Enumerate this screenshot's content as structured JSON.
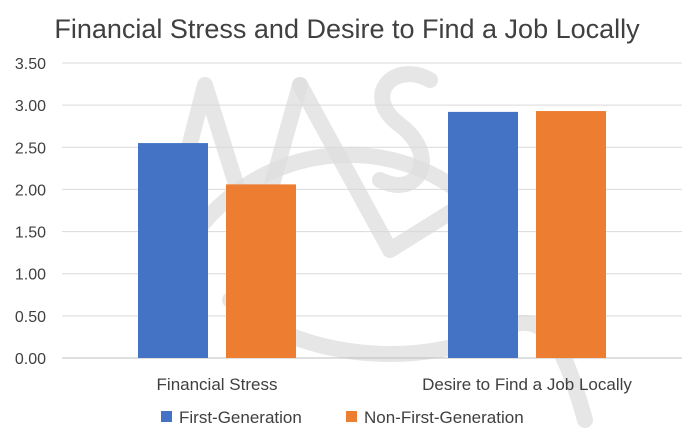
{
  "chart_data": {
    "type": "bar",
    "title": "Financial Stress and Desire to Find a Job Locally",
    "categories": [
      "Financial Stress",
      "Desire to Find a Job Locally"
    ],
    "series": [
      {
        "name": "First-Generation",
        "values": [
          2.55,
          2.92
        ],
        "color": "#4472c4"
      },
      {
        "name": "Non-First-Generation",
        "values": [
          2.06,
          2.93
        ],
        "color": "#ed7d31"
      }
    ],
    "ylim": [
      0,
      3.5
    ],
    "yticks": [
      "0.00",
      "0.50",
      "1.00",
      "1.50",
      "2.00",
      "2.50",
      "3.00",
      "3.50"
    ],
    "grid": true,
    "legend_position": "bottom"
  }
}
